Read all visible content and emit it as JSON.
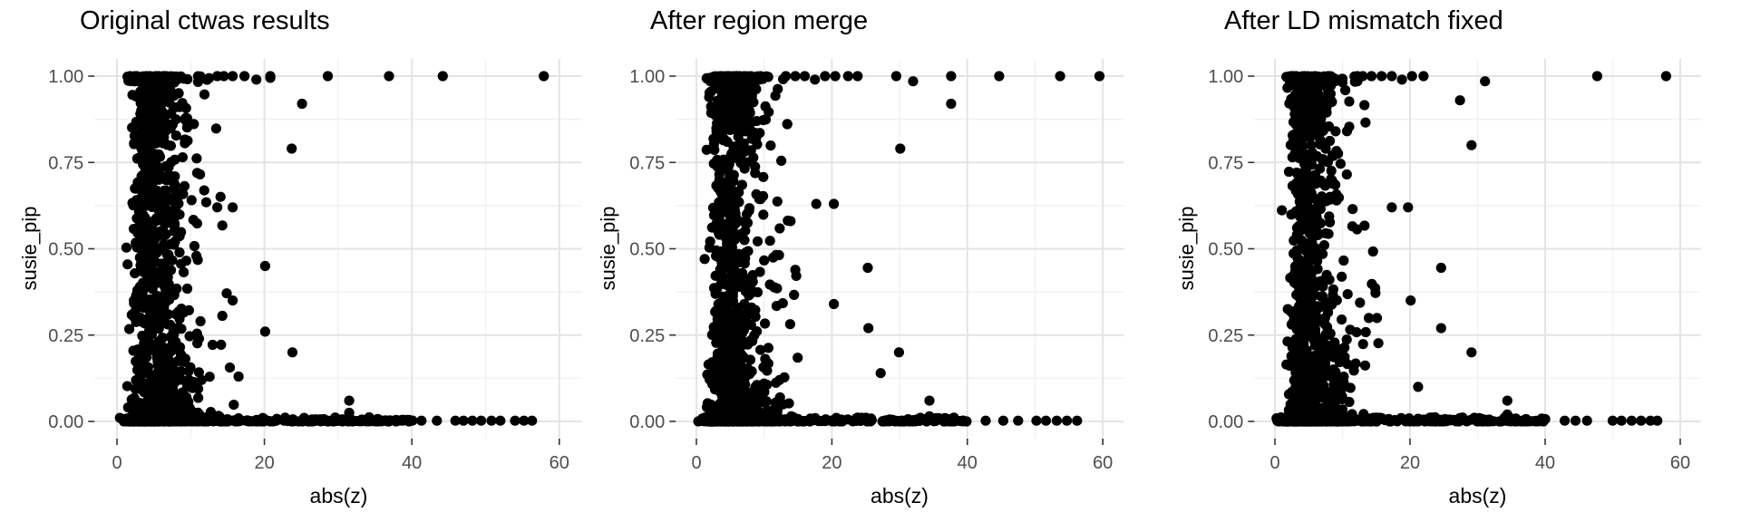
{
  "figure": {
    "background": "#ffffff"
  },
  "style": {
    "point_color": "#000000",
    "point_radius": 5.6,
    "grid_major_color": "#e4e4e4",
    "grid_minor_color": "#f1f1f1",
    "tick_color": "#333333",
    "tick_label_color": "#4d4d4d",
    "axis_title_color": "#000000",
    "title_color": "#000000"
  },
  "chart_data": [
    {
      "type": "scatter",
      "title": "Original ctwas results",
      "xlabel": "abs(z)",
      "ylabel": "susie_pip",
      "xlim": [
        -3,
        63
      ],
      "ylim": [
        -0.05,
        1.05
      ],
      "grid": true,
      "legend": "none",
      "x_ticks": [
        {
          "v": 0,
          "label": "0"
        },
        {
          "v": 20,
          "label": "20"
        },
        {
          "v": 40,
          "label": "40"
        },
        {
          "v": 60,
          "label": "60"
        }
      ],
      "y_ticks": [
        {
          "v": 0,
          "label": "0.00"
        },
        {
          "v": 0.25,
          "label": "0.25"
        },
        {
          "v": 0.5,
          "label": "0.50"
        },
        {
          "v": 0.75,
          "label": "0.75"
        },
        {
          "v": 1,
          "label": "1.00"
        }
      ],
      "x_minor": [
        10,
        30,
        50
      ],
      "y_minor": [
        0.125,
        0.375,
        0.625,
        0.875
      ],
      "n_points_approx": 1560,
      "point_cloud": {
        "seed": 101,
        "clusters": [
          {
            "kind": "floor",
            "n": 520,
            "mix": 0.62,
            "mu": 1.55,
            "sigma": 0.6,
            "umax": 40.2,
            "th": 0.012
          },
          {
            "kind": "wedge",
            "n": 170,
            "mu": 1.6,
            "sigma": 0.5,
            "maxy": 0.07
          },
          {
            "kind": "main",
            "n": 640,
            "mu": 1.72,
            "sigma": 0.42,
            "xmin": 0.5,
            "xmax": 16,
            "ypow": 1.45,
            "taper": 0.2
          },
          {
            "kind": "top",
            "n": 115,
            "mu": 1.55,
            "sigma": 0.45,
            "xmax": 12.5
          },
          {
            "kind": "blob",
            "n": 90,
            "mu": 1.7,
            "sigma": 0.3,
            "ymin": 0.84,
            "ymax": 0.995
          }
        ]
      },
      "notable_points": [
        [
          13.6,
          1.0
        ],
        [
          14.5,
          1.0
        ],
        [
          15.7,
          1.0
        ],
        [
          17.3,
          1.0
        ],
        [
          18.9,
          0.99
        ],
        [
          20.8,
          1.0
        ],
        [
          20.8,
          0.995
        ],
        [
          25.1,
          0.92
        ],
        [
          28.6,
          1.0
        ],
        [
          36.9,
          1.0
        ],
        [
          44.2,
          1.0
        ],
        [
          57.9,
          1.0
        ],
        [
          23.7,
          0.79
        ],
        [
          13.6,
          0.62
        ],
        [
          15.7,
          0.62
        ],
        [
          20.1,
          0.45
        ],
        [
          15.7,
          0.35
        ],
        [
          20.1,
          0.26
        ],
        [
          23.8,
          0.2
        ],
        [
          16.5,
          0.13
        ],
        [
          31.5,
          0.06
        ],
        [
          31.5,
          0.025
        ],
        [
          41.3,
          0.002
        ],
        [
          43.4,
          0.002
        ],
        [
          45.9,
          0.002
        ],
        [
          47.0,
          0.002
        ],
        [
          48.2,
          0.002
        ],
        [
          49.4,
          0.002
        ],
        [
          50.8,
          0.002
        ],
        [
          52.0,
          0.002
        ],
        [
          54.0,
          0.002
        ],
        [
          55.2,
          0.002
        ],
        [
          56.3,
          0.002
        ]
      ]
    },
    {
      "type": "scatter",
      "title": "After region merge",
      "xlabel": "abs(z)",
      "ylabel": "susie_pip",
      "xlim": [
        -3,
        63
      ],
      "ylim": [
        -0.05,
        1.05
      ],
      "grid": true,
      "legend": "none",
      "x_ticks": [
        {
          "v": 0,
          "label": "0"
        },
        {
          "v": 20,
          "label": "20"
        },
        {
          "v": 40,
          "label": "40"
        },
        {
          "v": 60,
          "label": "60"
        }
      ],
      "y_ticks": [
        {
          "v": 0,
          "label": "0.00"
        },
        {
          "v": 0.25,
          "label": "0.25"
        },
        {
          "v": 0.5,
          "label": "0.50"
        },
        {
          "v": 0.75,
          "label": "0.75"
        },
        {
          "v": 1,
          "label": "1.00"
        }
      ],
      "x_minor": [
        10,
        30,
        50
      ],
      "y_minor": [
        0.125,
        0.375,
        0.625,
        0.875
      ],
      "n_points_approx": 1490,
      "point_cloud": {
        "seed": 202,
        "clusters": [
          {
            "kind": "floor",
            "n": 500,
            "mix": 0.62,
            "mu": 1.55,
            "sigma": 0.6,
            "umax": 40.0,
            "th": 0.012
          },
          {
            "kind": "wedge",
            "n": 160,
            "mu": 1.6,
            "sigma": 0.5,
            "maxy": 0.07
          },
          {
            "kind": "main",
            "n": 600,
            "mu": 1.72,
            "sigma": 0.42,
            "xmin": 0.5,
            "xmax": 16,
            "ypow": 1.45,
            "taper": 0.2
          },
          {
            "kind": "top",
            "n": 108,
            "mu": 1.55,
            "sigma": 0.45,
            "xmax": 12.8
          },
          {
            "kind": "blob",
            "n": 85,
            "mu": 1.7,
            "sigma": 0.3,
            "ymin": 0.84,
            "ymax": 0.995
          }
        ]
      },
      "notable_points": [
        [
          13.2,
          1.0
        ],
        [
          14.6,
          1.0
        ],
        [
          16.0,
          1.0
        ],
        [
          17.5,
          0.99
        ],
        [
          19.0,
          1.0
        ],
        [
          20.5,
          1.0
        ],
        [
          22.4,
          1.0
        ],
        [
          23.8,
          1.0
        ],
        [
          29.5,
          1.0
        ],
        [
          32.0,
          0.985
        ],
        [
          37.6,
          1.0
        ],
        [
          44.7,
          1.0
        ],
        [
          53.7,
          1.0
        ],
        [
          59.5,
          1.0
        ],
        [
          37.6,
          0.92
        ],
        [
          30.1,
          0.79
        ],
        [
          17.7,
          0.63
        ],
        [
          20.3,
          0.63
        ],
        [
          13.9,
          0.58
        ],
        [
          25.3,
          0.445
        ],
        [
          20.3,
          0.34
        ],
        [
          25.4,
          0.27
        ],
        [
          29.9,
          0.2
        ],
        [
          27.2,
          0.14
        ],
        [
          34.4,
          0.06
        ],
        [
          34.4,
          0.015
        ],
        [
          42.7,
          0.002
        ],
        [
          45.3,
          0.002
        ],
        [
          47.5,
          0.002
        ],
        [
          50.2,
          0.002
        ],
        [
          51.6,
          0.002
        ],
        [
          53.2,
          0.002
        ],
        [
          54.7,
          0.002
        ],
        [
          56.2,
          0.002
        ]
      ]
    },
    {
      "type": "scatter",
      "title": "After LD mismatch fixed",
      "xlabel": "abs(z)",
      "ylabel": "susie_pip",
      "xlim": [
        -3,
        63
      ],
      "ylim": [
        -0.05,
        1.05
      ],
      "grid": true,
      "legend": "none",
      "x_ticks": [
        {
          "v": 0,
          "label": "0"
        },
        {
          "v": 20,
          "label": "20"
        },
        {
          "v": 40,
          "label": "40"
        },
        {
          "v": 60,
          "label": "60"
        }
      ],
      "y_ticks": [
        {
          "v": 0,
          "label": "0.00"
        },
        {
          "v": 0.25,
          "label": "0.25"
        },
        {
          "v": 0.5,
          "label": "0.50"
        },
        {
          "v": 0.75,
          "label": "0.75"
        },
        {
          "v": 1,
          "label": "1.00"
        }
      ],
      "x_minor": [
        10,
        30,
        50
      ],
      "y_minor": [
        0.125,
        0.375,
        0.625,
        0.875
      ],
      "n_points_approx": 1510,
      "point_cloud": {
        "seed": 303,
        "clusters": [
          {
            "kind": "floor",
            "n": 505,
            "mix": 0.62,
            "mu": 1.55,
            "sigma": 0.6,
            "umax": 40.2,
            "th": 0.012
          },
          {
            "kind": "wedge",
            "n": 165,
            "mu": 1.6,
            "sigma": 0.5,
            "maxy": 0.07
          },
          {
            "kind": "main",
            "n": 615,
            "mu": 1.72,
            "sigma": 0.42,
            "xmin": 0.5,
            "xmax": 16,
            "ypow": 1.45,
            "taper": 0.2
          },
          {
            "kind": "top",
            "n": 110,
            "mu": 1.55,
            "sigma": 0.45,
            "xmax": 12.2
          },
          {
            "kind": "blob",
            "n": 88,
            "mu": 1.7,
            "sigma": 0.3,
            "ymin": 0.84,
            "ymax": 0.995
          }
        ]
      },
      "notable_points": [
        [
          13.0,
          1.0
        ],
        [
          14.3,
          1.0
        ],
        [
          15.8,
          1.0
        ],
        [
          17.3,
          1.0
        ],
        [
          18.8,
          0.99
        ],
        [
          20.3,
          1.0
        ],
        [
          22.0,
          1.0
        ],
        [
          31.1,
          0.985
        ],
        [
          47.7,
          1.0
        ],
        [
          57.9,
          1.0
        ],
        [
          27.4,
          0.93
        ],
        [
          29.1,
          0.8
        ],
        [
          17.3,
          0.62
        ],
        [
          19.7,
          0.62
        ],
        [
          24.6,
          0.445
        ],
        [
          20.1,
          0.35
        ],
        [
          24.6,
          0.27
        ],
        [
          29.1,
          0.2
        ],
        [
          21.2,
          0.1
        ],
        [
          34.4,
          0.06
        ],
        [
          34.4,
          0.02
        ],
        [
          42.9,
          0.002
        ],
        [
          44.5,
          0.002
        ],
        [
          46.2,
          0.002
        ],
        [
          50.0,
          0.002
        ],
        [
          51.3,
          0.002
        ],
        [
          52.8,
          0.002
        ],
        [
          54.2,
          0.002
        ],
        [
          55.6,
          0.002
        ],
        [
          56.6,
          0.002
        ]
      ]
    }
  ]
}
